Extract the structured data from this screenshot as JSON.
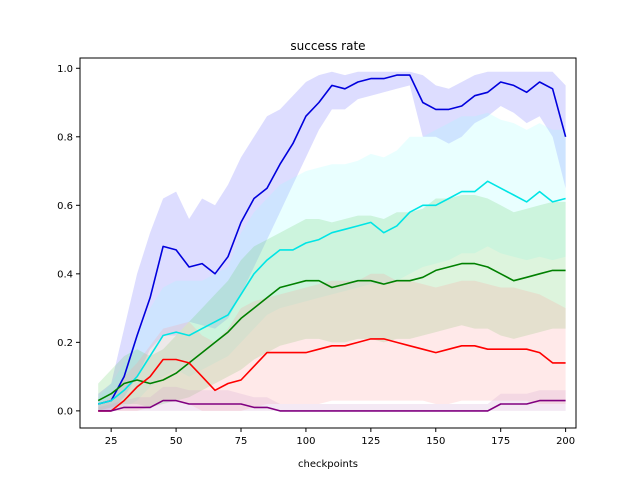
{
  "chart_data": {
    "type": "line",
    "title": "success rate",
    "xlabel": "checkpoints",
    "ylabel": "",
    "xlim": [
      13,
      204
    ],
    "ylim": [
      -0.05,
      1.03
    ],
    "xticks": [
      25,
      50,
      75,
      100,
      125,
      150,
      175,
      200
    ],
    "yticks": [
      0.0,
      0.2,
      0.4,
      0.6,
      0.8,
      1.0
    ],
    "xtick_labels": [
      "25",
      "50",
      "75",
      "100",
      "125",
      "150",
      "175",
      "200"
    ],
    "ytick_labels": [
      "0.0",
      "0.2",
      "0.4",
      "0.6",
      "0.8",
      "1.0"
    ],
    "grid": false,
    "legend": "none",
    "x": [
      20,
      25,
      30,
      35,
      40,
      45,
      50,
      55,
      60,
      65,
      70,
      75,
      80,
      85,
      90,
      95,
      100,
      105,
      110,
      115,
      120,
      125,
      130,
      135,
      140,
      145,
      150,
      155,
      160,
      165,
      170,
      175,
      180,
      185,
      190,
      195,
      200
    ],
    "series": [
      {
        "color": "#0000dd",
        "band_color": "#6666ff",
        "values": [
          0.02,
          0.03,
          0.1,
          0.22,
          0.33,
          0.48,
          0.47,
          0.42,
          0.43,
          0.4,
          0.45,
          0.55,
          0.62,
          0.65,
          0.72,
          0.78,
          0.86,
          0.9,
          0.95,
          0.94,
          0.96,
          0.97,
          0.97,
          0.98,
          0.98,
          0.9,
          0.88,
          0.88,
          0.89,
          0.92,
          0.93,
          0.96,
          0.95,
          0.93,
          0.96,
          0.94,
          0.8
        ],
        "lower": [
          0.0,
          0.0,
          0.04,
          0.1,
          0.18,
          0.22,
          0.22,
          0.26,
          0.25,
          0.24,
          0.27,
          0.34,
          0.42,
          0.5,
          0.58,
          0.66,
          0.74,
          0.82,
          0.88,
          0.88,
          0.91,
          0.92,
          0.93,
          0.94,
          0.95,
          0.8,
          0.8,
          0.78,
          0.8,
          0.84,
          0.86,
          0.89,
          0.87,
          0.84,
          0.86,
          0.8,
          0.65
        ],
        "upper": [
          0.05,
          0.08,
          0.24,
          0.4,
          0.52,
          0.62,
          0.64,
          0.56,
          0.62,
          0.6,
          0.66,
          0.74,
          0.8,
          0.86,
          0.88,
          0.92,
          0.96,
          0.98,
          0.99,
          0.98,
          0.99,
          0.99,
          0.99,
          0.99,
          0.99,
          0.98,
          0.95,
          0.94,
          0.96,
          0.98,
          0.99,
          0.99,
          0.99,
          0.99,
          0.99,
          0.99,
          0.95
        ]
      },
      {
        "color": "#00e5e5",
        "band_color": "#99ffff",
        "values": [
          0.02,
          0.03,
          0.06,
          0.1,
          0.16,
          0.22,
          0.23,
          0.22,
          0.24,
          0.26,
          0.28,
          0.34,
          0.4,
          0.44,
          0.47,
          0.47,
          0.49,
          0.5,
          0.52,
          0.53,
          0.54,
          0.55,
          0.52,
          0.54,
          0.58,
          0.6,
          0.6,
          0.62,
          0.64,
          0.64,
          0.67,
          0.65,
          0.63,
          0.61,
          0.64,
          0.61,
          0.62
        ],
        "lower": [
          0.0,
          0.0,
          0.01,
          0.03,
          0.07,
          0.1,
          0.12,
          0.1,
          0.12,
          0.14,
          0.16,
          0.2,
          0.24,
          0.28,
          0.3,
          0.31,
          0.32,
          0.33,
          0.34,
          0.35,
          0.36,
          0.37,
          0.37,
          0.38,
          0.4,
          0.42,
          0.43,
          0.44,
          0.46,
          0.46,
          0.48,
          0.46,
          0.45,
          0.44,
          0.45,
          0.44,
          0.45
        ],
        "upper": [
          0.04,
          0.08,
          0.14,
          0.22,
          0.3,
          0.36,
          0.38,
          0.38,
          0.38,
          0.4,
          0.42,
          0.52,
          0.58,
          0.62,
          0.66,
          0.68,
          0.7,
          0.71,
          0.72,
          0.72,
          0.73,
          0.75,
          0.74,
          0.76,
          0.8,
          0.8,
          0.82,
          0.84,
          0.86,
          0.86,
          0.87,
          0.85,
          0.84,
          0.82,
          0.84,
          0.82,
          0.82
        ]
      },
      {
        "color": "#008000",
        "band_color": "#66cc66",
        "values": [
          0.03,
          0.05,
          0.08,
          0.09,
          0.08,
          0.09,
          0.11,
          0.14,
          0.17,
          0.2,
          0.23,
          0.27,
          0.3,
          0.33,
          0.36,
          0.37,
          0.38,
          0.38,
          0.36,
          0.37,
          0.38,
          0.38,
          0.37,
          0.38,
          0.38,
          0.39,
          0.41,
          0.42,
          0.43,
          0.43,
          0.42,
          0.4,
          0.38,
          0.39,
          0.4,
          0.41,
          0.41
        ],
        "lower": [
          0.0,
          0.01,
          0.02,
          0.02,
          0.01,
          0.02,
          0.03,
          0.04,
          0.06,
          0.08,
          0.1,
          0.12,
          0.15,
          0.17,
          0.19,
          0.2,
          0.21,
          0.21,
          0.2,
          0.2,
          0.21,
          0.21,
          0.2,
          0.21,
          0.21,
          0.22,
          0.23,
          0.24,
          0.25,
          0.24,
          0.24,
          0.22,
          0.21,
          0.22,
          0.23,
          0.24,
          0.24
        ],
        "upper": [
          0.08,
          0.12,
          0.16,
          0.18,
          0.16,
          0.18,
          0.22,
          0.26,
          0.3,
          0.34,
          0.38,
          0.44,
          0.48,
          0.5,
          0.52,
          0.54,
          0.56,
          0.56,
          0.55,
          0.56,
          0.57,
          0.57,
          0.56,
          0.58,
          0.58,
          0.59,
          0.62,
          0.62,
          0.63,
          0.63,
          0.62,
          0.6,
          0.58,
          0.59,
          0.6,
          0.61,
          0.61
        ]
      },
      {
        "color": "#ff0000",
        "band_color": "#ff9999",
        "values": [
          0.0,
          0.0,
          0.03,
          0.07,
          0.1,
          0.15,
          0.15,
          0.14,
          0.1,
          0.06,
          0.08,
          0.09,
          0.13,
          0.17,
          0.17,
          0.17,
          0.17,
          0.18,
          0.19,
          0.19,
          0.2,
          0.21,
          0.21,
          0.2,
          0.19,
          0.18,
          0.17,
          0.18,
          0.19,
          0.19,
          0.18,
          0.18,
          0.18,
          0.18,
          0.17,
          0.14,
          0.14
        ],
        "lower": [
          0.0,
          0.0,
          0.0,
          0.0,
          0.01,
          0.03,
          0.03,
          0.02,
          0.0,
          0.0,
          0.0,
          0.0,
          0.01,
          0.02,
          0.02,
          0.02,
          0.02,
          0.02,
          0.03,
          0.03,
          0.03,
          0.03,
          0.03,
          0.03,
          0.03,
          0.03,
          0.02,
          0.02,
          0.03,
          0.03,
          0.03,
          0.03,
          0.03,
          0.03,
          0.02,
          0.02,
          0.02
        ],
        "upper": [
          0.02,
          0.04,
          0.1,
          0.14,
          0.19,
          0.24,
          0.25,
          0.26,
          0.22,
          0.2,
          0.24,
          0.3,
          0.32,
          0.33,
          0.34,
          0.35,
          0.36,
          0.37,
          0.38,
          0.38,
          0.38,
          0.4,
          0.4,
          0.38,
          0.38,
          0.37,
          0.36,
          0.37,
          0.38,
          0.38,
          0.37,
          0.36,
          0.36,
          0.35,
          0.34,
          0.32,
          0.3
        ]
      },
      {
        "color": "#800080",
        "band_color": "#cc99cc",
        "values": [
          0.0,
          0.0,
          0.01,
          0.01,
          0.01,
          0.03,
          0.03,
          0.02,
          0.02,
          0.02,
          0.02,
          0.02,
          0.01,
          0.01,
          0.0,
          0.0,
          0.0,
          0.0,
          0.0,
          0.0,
          0.0,
          0.0,
          0.0,
          0.0,
          0.0,
          0.0,
          0.0,
          0.0,
          0.0,
          0.0,
          0.0,
          0.02,
          0.02,
          0.02,
          0.03,
          0.03,
          0.03
        ],
        "lower": [
          0.0,
          0.0,
          0.0,
          0.0,
          0.0,
          0.0,
          0.0,
          0.0,
          0.0,
          0.0,
          0.0,
          0.0,
          0.0,
          0.0,
          0.0,
          0.0,
          0.0,
          0.0,
          0.0,
          0.0,
          0.0,
          0.0,
          0.0,
          0.0,
          0.0,
          0.0,
          0.0,
          0.0,
          0.0,
          0.0,
          0.0,
          0.0,
          0.0,
          0.0,
          0.0,
          0.0,
          0.0
        ],
        "upper": [
          0.01,
          0.02,
          0.03,
          0.04,
          0.04,
          0.07,
          0.07,
          0.06,
          0.06,
          0.06,
          0.06,
          0.05,
          0.04,
          0.04,
          0.02,
          0.02,
          0.02,
          0.02,
          0.02,
          0.02,
          0.02,
          0.02,
          0.02,
          0.02,
          0.02,
          0.02,
          0.02,
          0.02,
          0.02,
          0.02,
          0.02,
          0.05,
          0.05,
          0.05,
          0.06,
          0.06,
          0.06
        ]
      }
    ]
  }
}
